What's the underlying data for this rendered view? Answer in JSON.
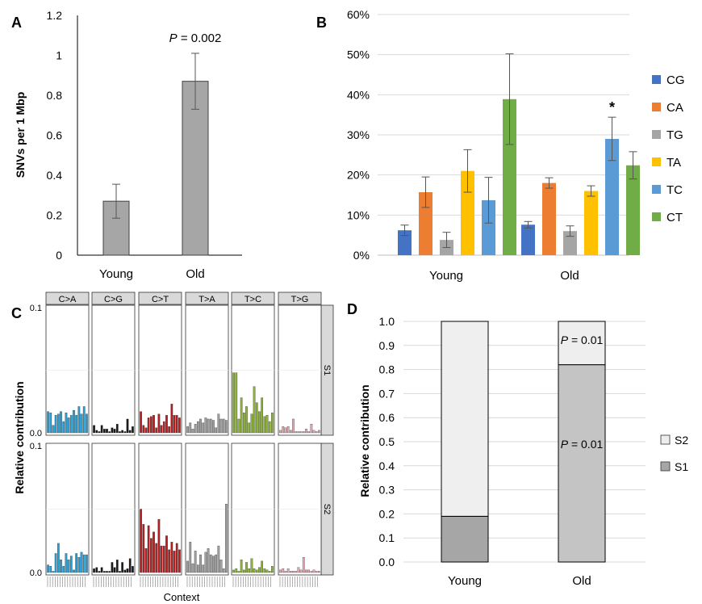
{
  "chart_data": [
    {
      "panel": "A",
      "type": "bar",
      "ylabel": "SNVs per 1 Mbp",
      "categories": [
        "Young",
        "Old"
      ],
      "values": [
        0.27,
        0.87
      ],
      "errors": [
        0.085,
        0.14
      ],
      "ylim": [
        0,
        1.2
      ],
      "yticks": [
        "0",
        "0.2",
        "0.4",
        "0.6",
        "0.8",
        "1",
        "1.2"
      ],
      "annotation": {
        "italic": "P",
        "text": " = 0.002"
      },
      "colors": {
        "bar": "#a6a6a6"
      }
    },
    {
      "panel": "B",
      "type": "bar",
      "categories": [
        "Young",
        "Old"
      ],
      "series": [
        {
          "name": "CG",
          "color": "#4472c4",
          "values": [
            6.2,
            7.6
          ],
          "errors": [
            1.3,
            0.8
          ]
        },
        {
          "name": "CA",
          "color": "#ed7d31",
          "values": [
            15.7,
            18.0
          ],
          "errors": [
            3.8,
            1.3
          ]
        },
        {
          "name": "TG",
          "color": "#a5a5a5",
          "values": [
            3.8,
            6.0
          ],
          "errors": [
            1.9,
            1.3
          ]
        },
        {
          "name": "TA",
          "color": "#ffc000",
          "values": [
            21.0,
            16.0
          ],
          "errors": [
            5.3,
            1.3
          ]
        },
        {
          "name": "TC",
          "color": "#5b9bd5",
          "values": [
            13.7,
            29.0
          ],
          "errors": [
            5.7,
            5.4
          ]
        },
        {
          "name": "CT",
          "color": "#70ad47",
          "values": [
            38.9,
            22.4
          ],
          "errors": [
            11.3,
            3.4
          ]
        }
      ],
      "ylim": [
        0,
        60
      ],
      "yticks": [
        "0%",
        "10%",
        "20%",
        "30%",
        "40%",
        "50%",
        "60%"
      ],
      "annotation": "*"
    },
    {
      "panel": "C",
      "type": "bar",
      "ylabel": "Relative contribution",
      "xlabel": "Context",
      "columns": [
        "C>A",
        "C>G",
        "C>T",
        "T>A",
        "T>C",
        "T>G"
      ],
      "rows": [
        "S1",
        "S2"
      ],
      "ytick_top": "0.1",
      "ytick_bottom": "0.0",
      "ylim": [
        0,
        0.1
      ],
      "column_colors": [
        "#2e9fd2",
        "#1a1a1a",
        "#b22222",
        "#a0a0a0",
        "#8db33a",
        "#e2aab5"
      ],
      "values": {
        "S1": [
          [
            0.017,
            0.016,
            0.006,
            0.014,
            0.015,
            0.017,
            0.009,
            0.016,
            0.012,
            0.014,
            0.018,
            0.014,
            0.021,
            0.015,
            0.021,
            0.015
          ],
          [
            0.006,
            0.002,
            0.001,
            0.006,
            0.003,
            0.003,
            0.001,
            0.004,
            0.003,
            0.007,
            0.001,
            0.002,
            0.001,
            0.011,
            0.002,
            0.005
          ],
          [
            0.017,
            0.006,
            0.004,
            0.012,
            0.013,
            0.014,
            0.004,
            0.015,
            0.006,
            0.009,
            0.014,
            0.005,
            0.023,
            0.014,
            0.014,
            0.012
          ],
          [
            0.005,
            0.008,
            0.003,
            0.007,
            0.009,
            0.011,
            0.008,
            0.012,
            0.011,
            0.011,
            0.01,
            0.004,
            0.015,
            0.011,
            0.011,
            0.01
          ],
          [
            0.048,
            0.048,
            0.011,
            0.028,
            0.016,
            0.021,
            0.008,
            0.015,
            0.037,
            0.024,
            0.017,
            0.028,
            0.013,
            0.014,
            0.009,
            0.016
          ],
          [
            0.002,
            0.005,
            0.004,
            0.005,
            0.002,
            0.011,
            0.001,
            0.001,
            0.001,
            0.001,
            0.003,
            0.001,
            0.007,
            0.002,
            0.001,
            0.002
          ]
        ],
        "S2": [
          [
            0.006,
            0.005,
            0.001,
            0.015,
            0.023,
            0.01,
            0.005,
            0.015,
            0.01,
            0.013,
            0.002,
            0.015,
            0.012,
            0.016,
            0.014,
            0.014
          ],
          [
            0.003,
            0.004,
            0.001,
            0.004,
            0.001,
            0.001,
            0.001,
            0.008,
            0.004,
            0.01,
            0.001,
            0.008,
            0.002,
            0.003,
            0.011,
            0.005
          ],
          [
            0.05,
            0.038,
            0.019,
            0.037,
            0.027,
            0.032,
            0.023,
            0.042,
            0.021,
            0.021,
            0.029,
            0.018,
            0.024,
            0.017,
            0.023,
            0.018
          ],
          [
            0.009,
            0.024,
            0.007,
            0.017,
            0.006,
            0.014,
            0.006,
            0.016,
            0.019,
            0.014,
            0.013,
            0.014,
            0.021,
            0.01,
            0.003,
            0.054
          ],
          [
            0.002,
            0.003,
            0.001,
            0.01,
            0.002,
            0.008,
            0.003,
            0.011,
            0.003,
            0.002,
            0.004,
            0.009,
            0.003,
            0.002,
            0.001,
            0.005
          ],
          [
            0.002,
            0.003,
            0.001,
            0.003,
            0.001,
            0.001,
            0.001,
            0.004,
            0.002,
            0.012,
            0.002,
            0.002,
            0.001,
            0.002,
            0.001,
            0.001
          ]
        ]
      }
    },
    {
      "panel": "D",
      "type": "bar",
      "stacked": true,
      "ylabel": "Relative contribution",
      "categories": [
        "Young",
        "Old"
      ],
      "series": [
        {
          "name": "S1",
          "color": "#a6a6a6",
          "values": [
            0.19,
            0.82
          ]
        },
        {
          "name": "S2",
          "color": "#eeeeee",
          "values": [
            0.81,
            0.18
          ]
        }
      ],
      "ylim": [
        0,
        1.0
      ],
      "yticks": [
        "0.0",
        "0.1",
        "0.2",
        "0.3",
        "0.4",
        "0.5",
        "0.6",
        "0.7",
        "0.8",
        "0.9",
        "1.0"
      ],
      "annotations": [
        {
          "italic": "P",
          "text": " = 0.01",
          "category": "Old",
          "series": "S2"
        },
        {
          "italic": "P",
          "text": " = 0.01",
          "category": "Old",
          "series": "S1"
        }
      ],
      "colors": {
        "old_s1": "#c4c4c4",
        "young_s2": "#efefef"
      }
    }
  ]
}
